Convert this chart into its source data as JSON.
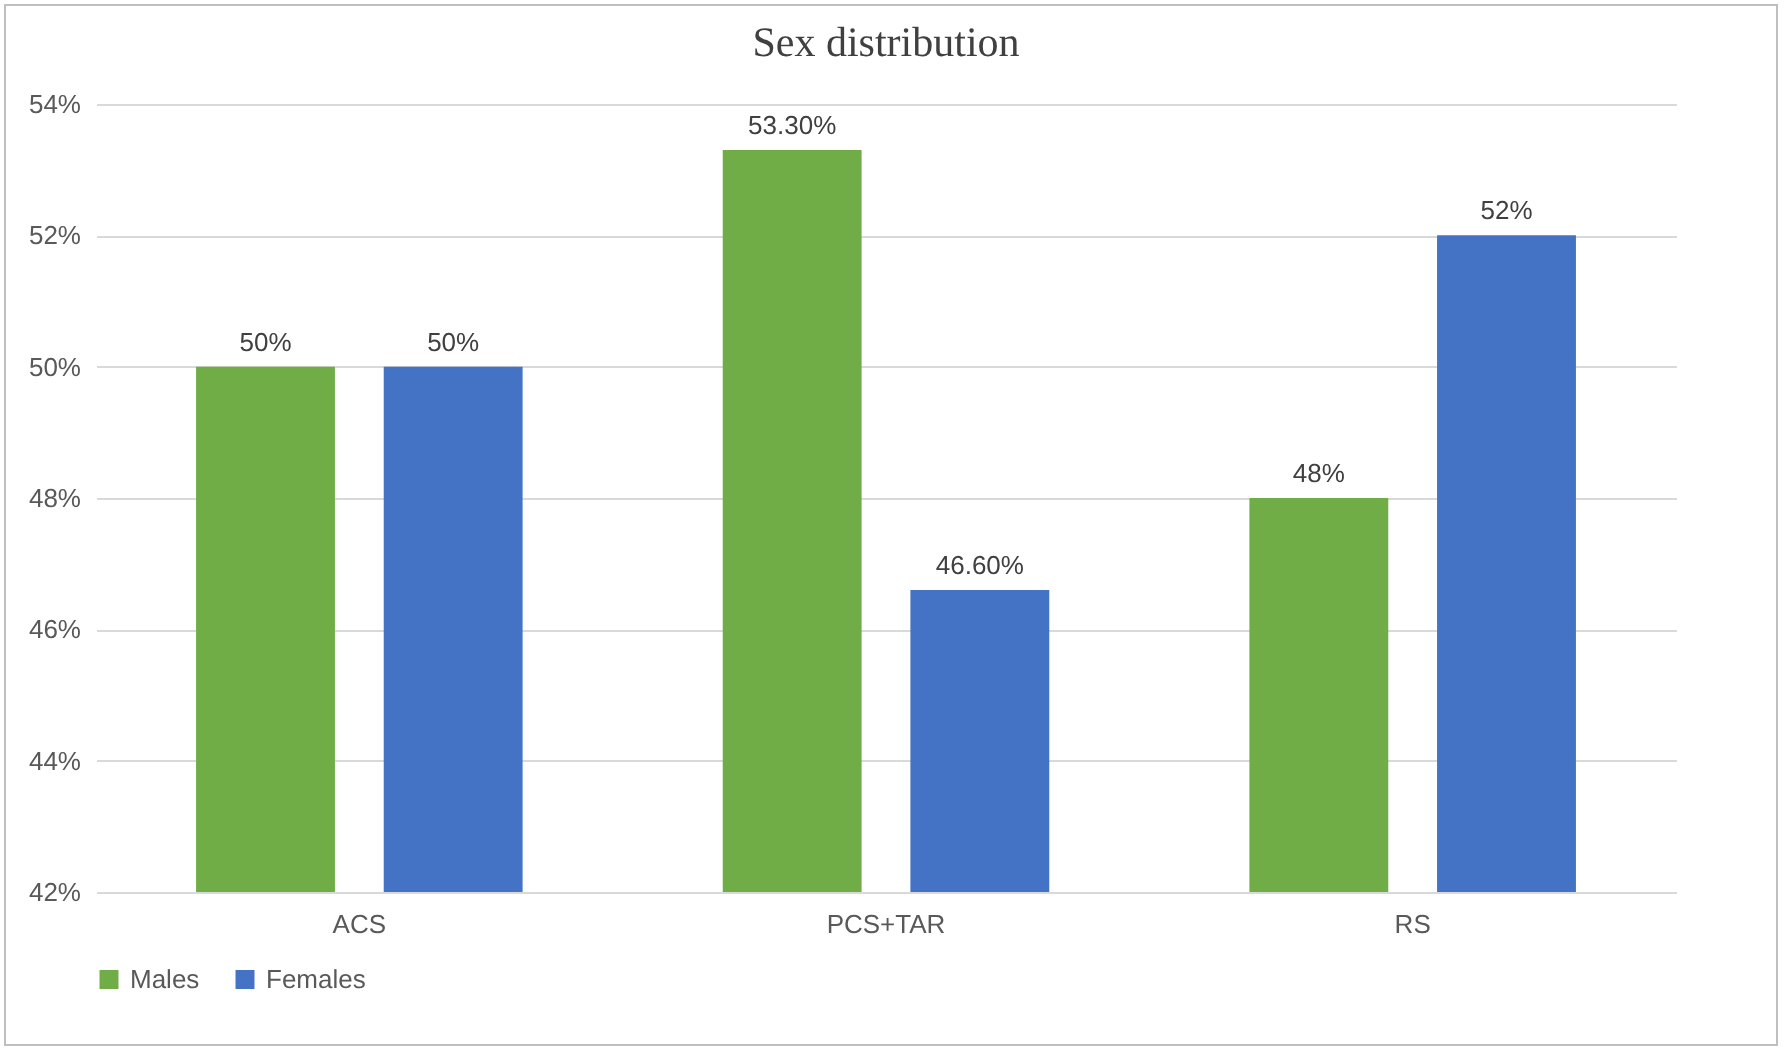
{
  "chart_data": {
    "type": "bar",
    "title": "Sex distribution",
    "categories": [
      "ACS",
      "PCS+TAR",
      "RS"
    ],
    "series": [
      {
        "name": "Males",
        "color": "#70ad47",
        "values": [
          50,
          53.3,
          48
        ],
        "value_labels": [
          "50%",
          "53.30%",
          "48%"
        ]
      },
      {
        "name": "Females",
        "color": "#4472c4",
        "values": [
          50,
          46.6,
          52
        ],
        "value_labels": [
          "50%",
          "46.60%",
          "52%"
        ]
      }
    ],
    "ylim": [
      42,
      54
    ],
    "yticks": [
      {
        "value": 42,
        "label": "42%"
      },
      {
        "value": 44,
        "label": "44%"
      },
      {
        "value": 46,
        "label": "46%"
      },
      {
        "value": 48,
        "label": "48%"
      },
      {
        "value": 50,
        "label": "50%"
      },
      {
        "value": 52,
        "label": "52%"
      },
      {
        "value": 54,
        "label": "54%"
      }
    ],
    "grid": "y",
    "legend": "bottom"
  }
}
